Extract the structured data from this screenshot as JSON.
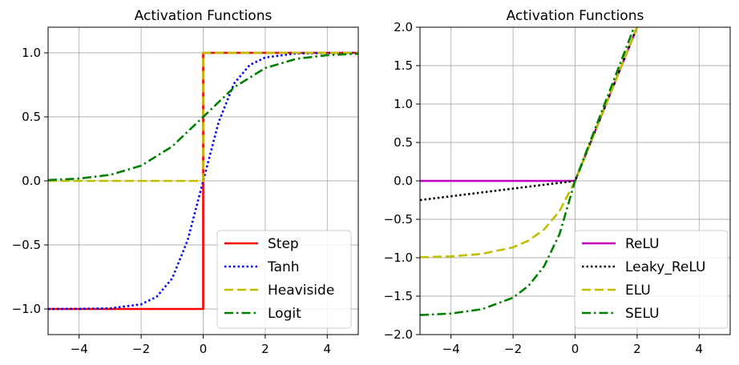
{
  "chart_data": [
    {
      "type": "line",
      "title": "Activation Functions",
      "xlabel": "",
      "ylabel": "",
      "xlim": [
        -5,
        5
      ],
      "ylim": [
        -1.2,
        1.2
      ],
      "xticks": [
        -4,
        -2,
        0,
        2,
        4
      ],
      "yticks": [
        -1.0,
        -0.5,
        0.0,
        0.5,
        1.0
      ],
      "xtick_labels": [
        "−4",
        "−2",
        "0",
        "2",
        "4"
      ],
      "ytick_labels": [
        "−1.0",
        "−0.5",
        "0.0",
        "0.5",
        "1.0"
      ],
      "grid": true,
      "legend_position": "lower-right",
      "series": [
        {
          "name": "Step",
          "color": "#ff0000",
          "style": "solid",
          "x": [
            -5,
            0,
            0,
            5
          ],
          "y": [
            -1,
            -1,
            1,
            1
          ]
        },
        {
          "name": "Tanh",
          "color": "#0000ff",
          "style": "dotted",
          "x": [
            -5,
            -4,
            -3,
            -2,
            -1.5,
            -1,
            -0.5,
            0,
            0.5,
            1,
            1.5,
            2,
            3,
            4,
            5
          ],
          "y": [
            -1.0,
            -0.999,
            -0.995,
            -0.964,
            -0.905,
            -0.762,
            -0.462,
            0.0,
            0.462,
            0.762,
            0.905,
            0.964,
            0.995,
            0.999,
            1.0
          ]
        },
        {
          "name": "Heaviside",
          "color": "#bfbf00",
          "style": "dashed",
          "x": [
            -5,
            0,
            0,
            5
          ],
          "y": [
            0,
            0,
            1,
            1
          ]
        },
        {
          "name": "Logit",
          "color": "#008000",
          "style": "dashdot",
          "x": [
            -5,
            -4,
            -3,
            -2,
            -1,
            0,
            1,
            2,
            3,
            4,
            5
          ],
          "y": [
            0.007,
            0.018,
            0.047,
            0.119,
            0.269,
            0.5,
            0.731,
            0.881,
            0.953,
            0.982,
            0.993
          ]
        }
      ]
    },
    {
      "type": "line",
      "title": "Activation Functions",
      "xlabel": "",
      "ylabel": "",
      "xlim": [
        -5,
        5
      ],
      "ylim": [
        -2.0,
        2.0
      ],
      "xticks": [
        -4,
        -2,
        0,
        2,
        4
      ],
      "yticks": [
        -2.0,
        -1.5,
        -1.0,
        -0.5,
        0.0,
        0.5,
        1.0,
        1.5,
        2.0
      ],
      "xtick_labels": [
        "−4",
        "−2",
        "0",
        "2",
        "4"
      ],
      "ytick_labels": [
        "−2.0",
        "−1.5",
        "−1.0",
        "−0.5",
        "0.0",
        "0.5",
        "1.0",
        "1.5",
        "2.0"
      ],
      "grid": true,
      "legend_position": "lower-right",
      "series": [
        {
          "name": "ReLU",
          "color": "#bf00bf",
          "style": "solid",
          "x": [
            -5,
            0,
            2.2
          ],
          "y": [
            0,
            0,
            2.2
          ]
        },
        {
          "name": "Leaky_ReLU",
          "color": "#000000",
          "style": "dotted",
          "x": [
            -5,
            0,
            2.2
          ],
          "y": [
            -0.25,
            0,
            2.2
          ]
        },
        {
          "name": "ELU",
          "color": "#bfbf00",
          "style": "dashed",
          "x": [
            -5,
            -4,
            -3,
            -2,
            -1.5,
            -1,
            -0.5,
            0,
            2.2
          ],
          "y": [
            -0.993,
            -0.982,
            -0.95,
            -0.865,
            -0.777,
            -0.632,
            -0.393,
            0,
            2.2
          ]
        },
        {
          "name": "SELU",
          "color": "#008000",
          "style": "dashdot",
          "x": [
            -5,
            -4,
            -3,
            -2,
            -1.5,
            -1,
            -0.5,
            0,
            2.2
          ],
          "y": [
            -1.746,
            -1.726,
            -1.67,
            -1.52,
            -1.365,
            -1.111,
            -0.692,
            0,
            2.311
          ]
        }
      ]
    }
  ]
}
